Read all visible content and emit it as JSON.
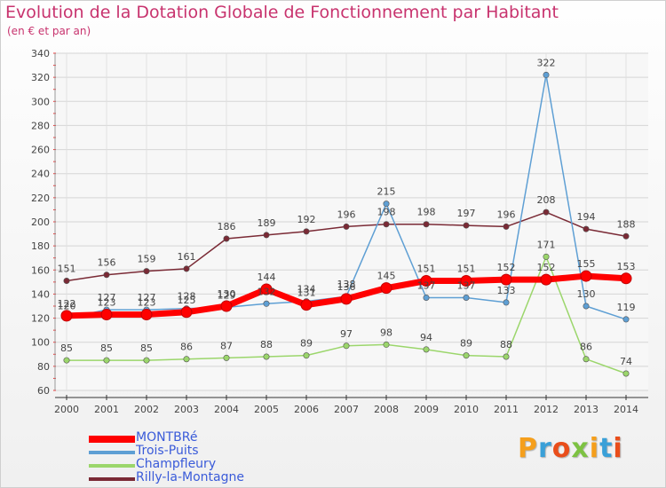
{
  "header": {
    "title": "Evolution de la Dotation Globale de Fonctionnement par Habitant",
    "subtitle": "(en € et par an)"
  },
  "logo": {
    "text": "Proxiti",
    "colors": [
      "#f59f1c",
      "#3aa0d8",
      "#e94e1b",
      "#7dc242",
      "#f59f1c",
      "#3aa0d8",
      "#e94e1b"
    ]
  },
  "chart_data": {
    "type": "line",
    "title": "Evolution de la Dotation Globale de Fonctionnement par Habitant",
    "subtitle": "(en € et par an)",
    "x": [
      "2000",
      "2001",
      "2002",
      "2003",
      "2004",
      "2005",
      "2006",
      "2007",
      "2008",
      "2009",
      "2010",
      "2011",
      "2012",
      "2013",
      "2014"
    ],
    "ylim": [
      60,
      340
    ],
    "yticks": [
      60,
      80,
      100,
      120,
      140,
      160,
      180,
      200,
      220,
      240,
      260,
      280,
      300,
      320,
      340
    ],
    "grid": true,
    "legend_position": "bottom-left",
    "series": [
      {
        "name": "MONTBRé",
        "color": "#ff0000",
        "values": [
          122,
          123,
          123,
          125,
          130,
          144,
          131,
          136,
          145,
          151,
          151,
          152,
          152,
          155,
          153
        ],
        "labels": [
          "122",
          "123",
          "123",
          "125",
          "130",
          "144",
          "131",
          "136",
          "145",
          "151",
          "151",
          "152",
          "152",
          "155",
          "153"
        ]
      },
      {
        "name": "Trois-Puits",
        "color": "#5e9fd4",
        "values": [
          120,
          127,
          127,
          128,
          129,
          132,
          134,
          138,
          215,
          137,
          137,
          133,
          322,
          130,
          119
        ],
        "labels": [
          "120",
          "127",
          "127",
          "128",
          "129",
          "132",
          "134",
          "138",
          "215",
          "137",
          "137",
          "133",
          "322",
          "130",
          "119"
        ]
      },
      {
        "name": "Champfleury",
        "color": "#9bd66b",
        "values": [
          85,
          85,
          85,
          86,
          87,
          88,
          89,
          97,
          98,
          94,
          89,
          88,
          171,
          86,
          74
        ],
        "labels": [
          "85",
          "85",
          "85",
          "86",
          "87",
          "88",
          "89",
          "97",
          "98",
          "94",
          "89",
          "88",
          "171",
          "86",
          "74"
        ]
      },
      {
        "name": "Rilly-la-Montagne",
        "color": "#7a2a35",
        "values": [
          151,
          156,
          159,
          161,
          186,
          189,
          192,
          196,
          198,
          198,
          197,
          196,
          208,
          194,
          188
        ],
        "labels": [
          "151",
          "156",
          "159",
          "161",
          "186",
          "189",
          "192",
          "196",
          "198",
          "198",
          "197",
          "196",
          "208",
          "194",
          "188"
        ]
      }
    ]
  }
}
